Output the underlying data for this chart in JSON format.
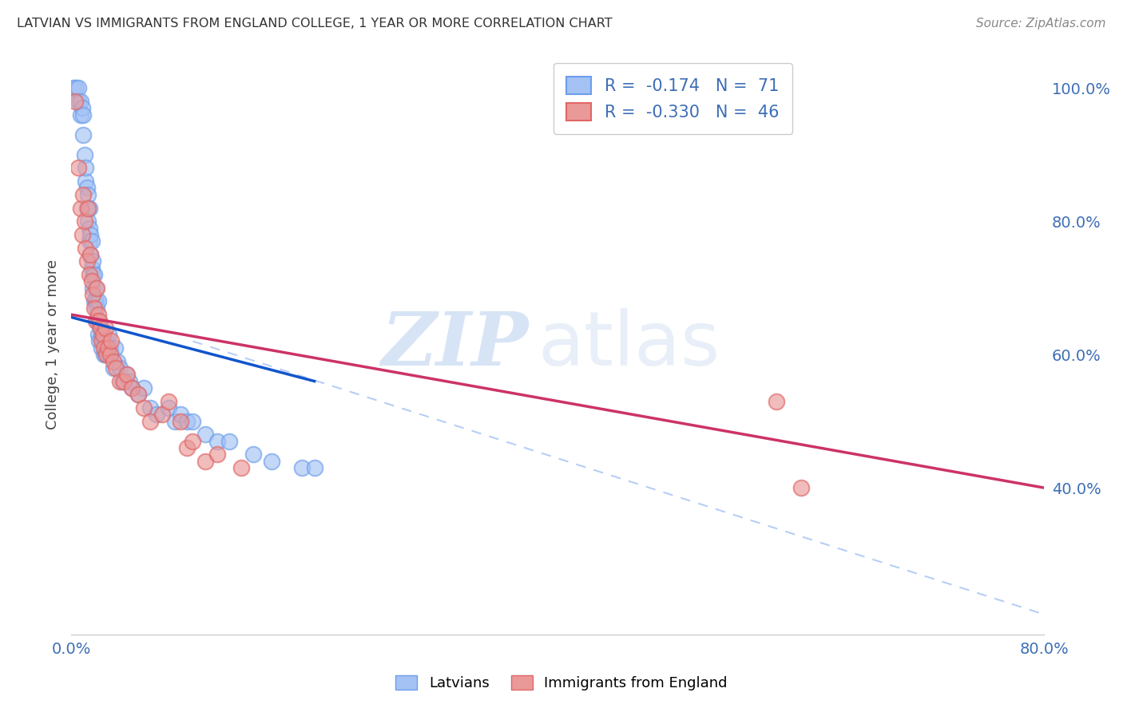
{
  "title": "LATVIAN VS IMMIGRANTS FROM ENGLAND COLLEGE, 1 YEAR OR MORE CORRELATION CHART",
  "source": "Source: ZipAtlas.com",
  "ylabel": "College, 1 year or more",
  "xlim": [
    0.0,
    0.8
  ],
  "ylim": [
    0.18,
    1.05
  ],
  "yticks_right": [
    0.4,
    0.6,
    0.8,
    1.0
  ],
  "ytick_right_labels": [
    "40.0%",
    "60.0%",
    "80.0%",
    "100.0%"
  ],
  "legend_R1": "-0.174",
  "legend_N1": "71",
  "legend_R2": "-0.330",
  "legend_N2": "46",
  "blue_color": "#a4c2f4",
  "pink_color": "#ea9999",
  "blue_edge_color": "#6d9eeb",
  "pink_edge_color": "#e06666",
  "blue_line_color": "#1155cc",
  "pink_line_color": "#cc3366",
  "dash_color": "#a4c2f4",
  "blue_scatter_x": [
    0.002,
    0.004,
    0.006,
    0.006,
    0.008,
    0.008,
    0.009,
    0.01,
    0.01,
    0.011,
    0.012,
    0.012,
    0.013,
    0.013,
    0.014,
    0.014,
    0.015,
    0.015,
    0.015,
    0.016,
    0.016,
    0.017,
    0.017,
    0.018,
    0.018,
    0.018,
    0.019,
    0.019,
    0.02,
    0.02,
    0.021,
    0.021,
    0.022,
    0.022,
    0.023,
    0.023,
    0.024,
    0.025,
    0.025,
    0.026,
    0.027,
    0.028,
    0.029,
    0.03,
    0.031,
    0.032,
    0.033,
    0.035,
    0.036,
    0.038,
    0.04,
    0.042,
    0.045,
    0.048,
    0.05,
    0.055,
    0.06,
    0.065,
    0.07,
    0.08,
    0.085,
    0.09,
    0.095,
    0.1,
    0.11,
    0.12,
    0.13,
    0.15,
    0.165,
    0.19,
    0.2
  ],
  "blue_scatter_y": [
    1.0,
    1.0,
    0.98,
    1.0,
    0.96,
    0.98,
    0.97,
    0.96,
    0.93,
    0.9,
    0.86,
    0.88,
    0.82,
    0.85,
    0.84,
    0.8,
    0.82,
    0.79,
    0.77,
    0.78,
    0.75,
    0.77,
    0.73,
    0.74,
    0.72,
    0.7,
    0.72,
    0.68,
    0.68,
    0.7,
    0.67,
    0.65,
    0.68,
    0.63,
    0.65,
    0.62,
    0.64,
    0.63,
    0.61,
    0.62,
    0.6,
    0.6,
    0.62,
    0.6,
    0.63,
    0.61,
    0.6,
    0.58,
    0.61,
    0.59,
    0.58,
    0.56,
    0.57,
    0.56,
    0.55,
    0.54,
    0.55,
    0.52,
    0.51,
    0.52,
    0.5,
    0.51,
    0.5,
    0.5,
    0.48,
    0.47,
    0.47,
    0.45,
    0.44,
    0.43,
    0.43
  ],
  "pink_scatter_x": [
    0.003,
    0.006,
    0.008,
    0.009,
    0.01,
    0.011,
    0.012,
    0.013,
    0.014,
    0.015,
    0.016,
    0.017,
    0.018,
    0.019,
    0.02,
    0.021,
    0.022,
    0.023,
    0.024,
    0.025,
    0.026,
    0.027,
    0.028,
    0.029,
    0.03,
    0.032,
    0.033,
    0.035,
    0.037,
    0.04,
    0.043,
    0.046,
    0.05,
    0.055,
    0.06,
    0.065,
    0.075,
    0.08,
    0.09,
    0.095,
    0.1,
    0.11,
    0.12,
    0.14,
    0.58,
    0.6
  ],
  "pink_scatter_y": [
    0.98,
    0.88,
    0.82,
    0.78,
    0.84,
    0.8,
    0.76,
    0.74,
    0.82,
    0.72,
    0.75,
    0.71,
    0.69,
    0.67,
    0.65,
    0.7,
    0.66,
    0.65,
    0.64,
    0.62,
    0.63,
    0.61,
    0.64,
    0.6,
    0.61,
    0.6,
    0.62,
    0.59,
    0.58,
    0.56,
    0.56,
    0.57,
    0.55,
    0.54,
    0.52,
    0.5,
    0.51,
    0.53,
    0.5,
    0.46,
    0.47,
    0.44,
    0.45,
    0.43,
    0.53,
    0.4
  ],
  "blue_line_x": [
    0.0,
    0.2
  ],
  "blue_line_y": [
    0.656,
    0.56
  ],
  "pink_line_x": [
    0.0,
    0.8
  ],
  "pink_line_y": [
    0.66,
    0.4
  ],
  "dash_line_x": [
    0.1,
    0.8
  ],
  "dash_line_y": [
    0.62,
    0.21
  ],
  "watermark_zip": "ZIP",
  "watermark_atlas": "atlas",
  "legend_labels": [
    "Latvians",
    "Immigrants from England"
  ],
  "grid_color": "#dddddd",
  "text_color": "#3d6eb5"
}
